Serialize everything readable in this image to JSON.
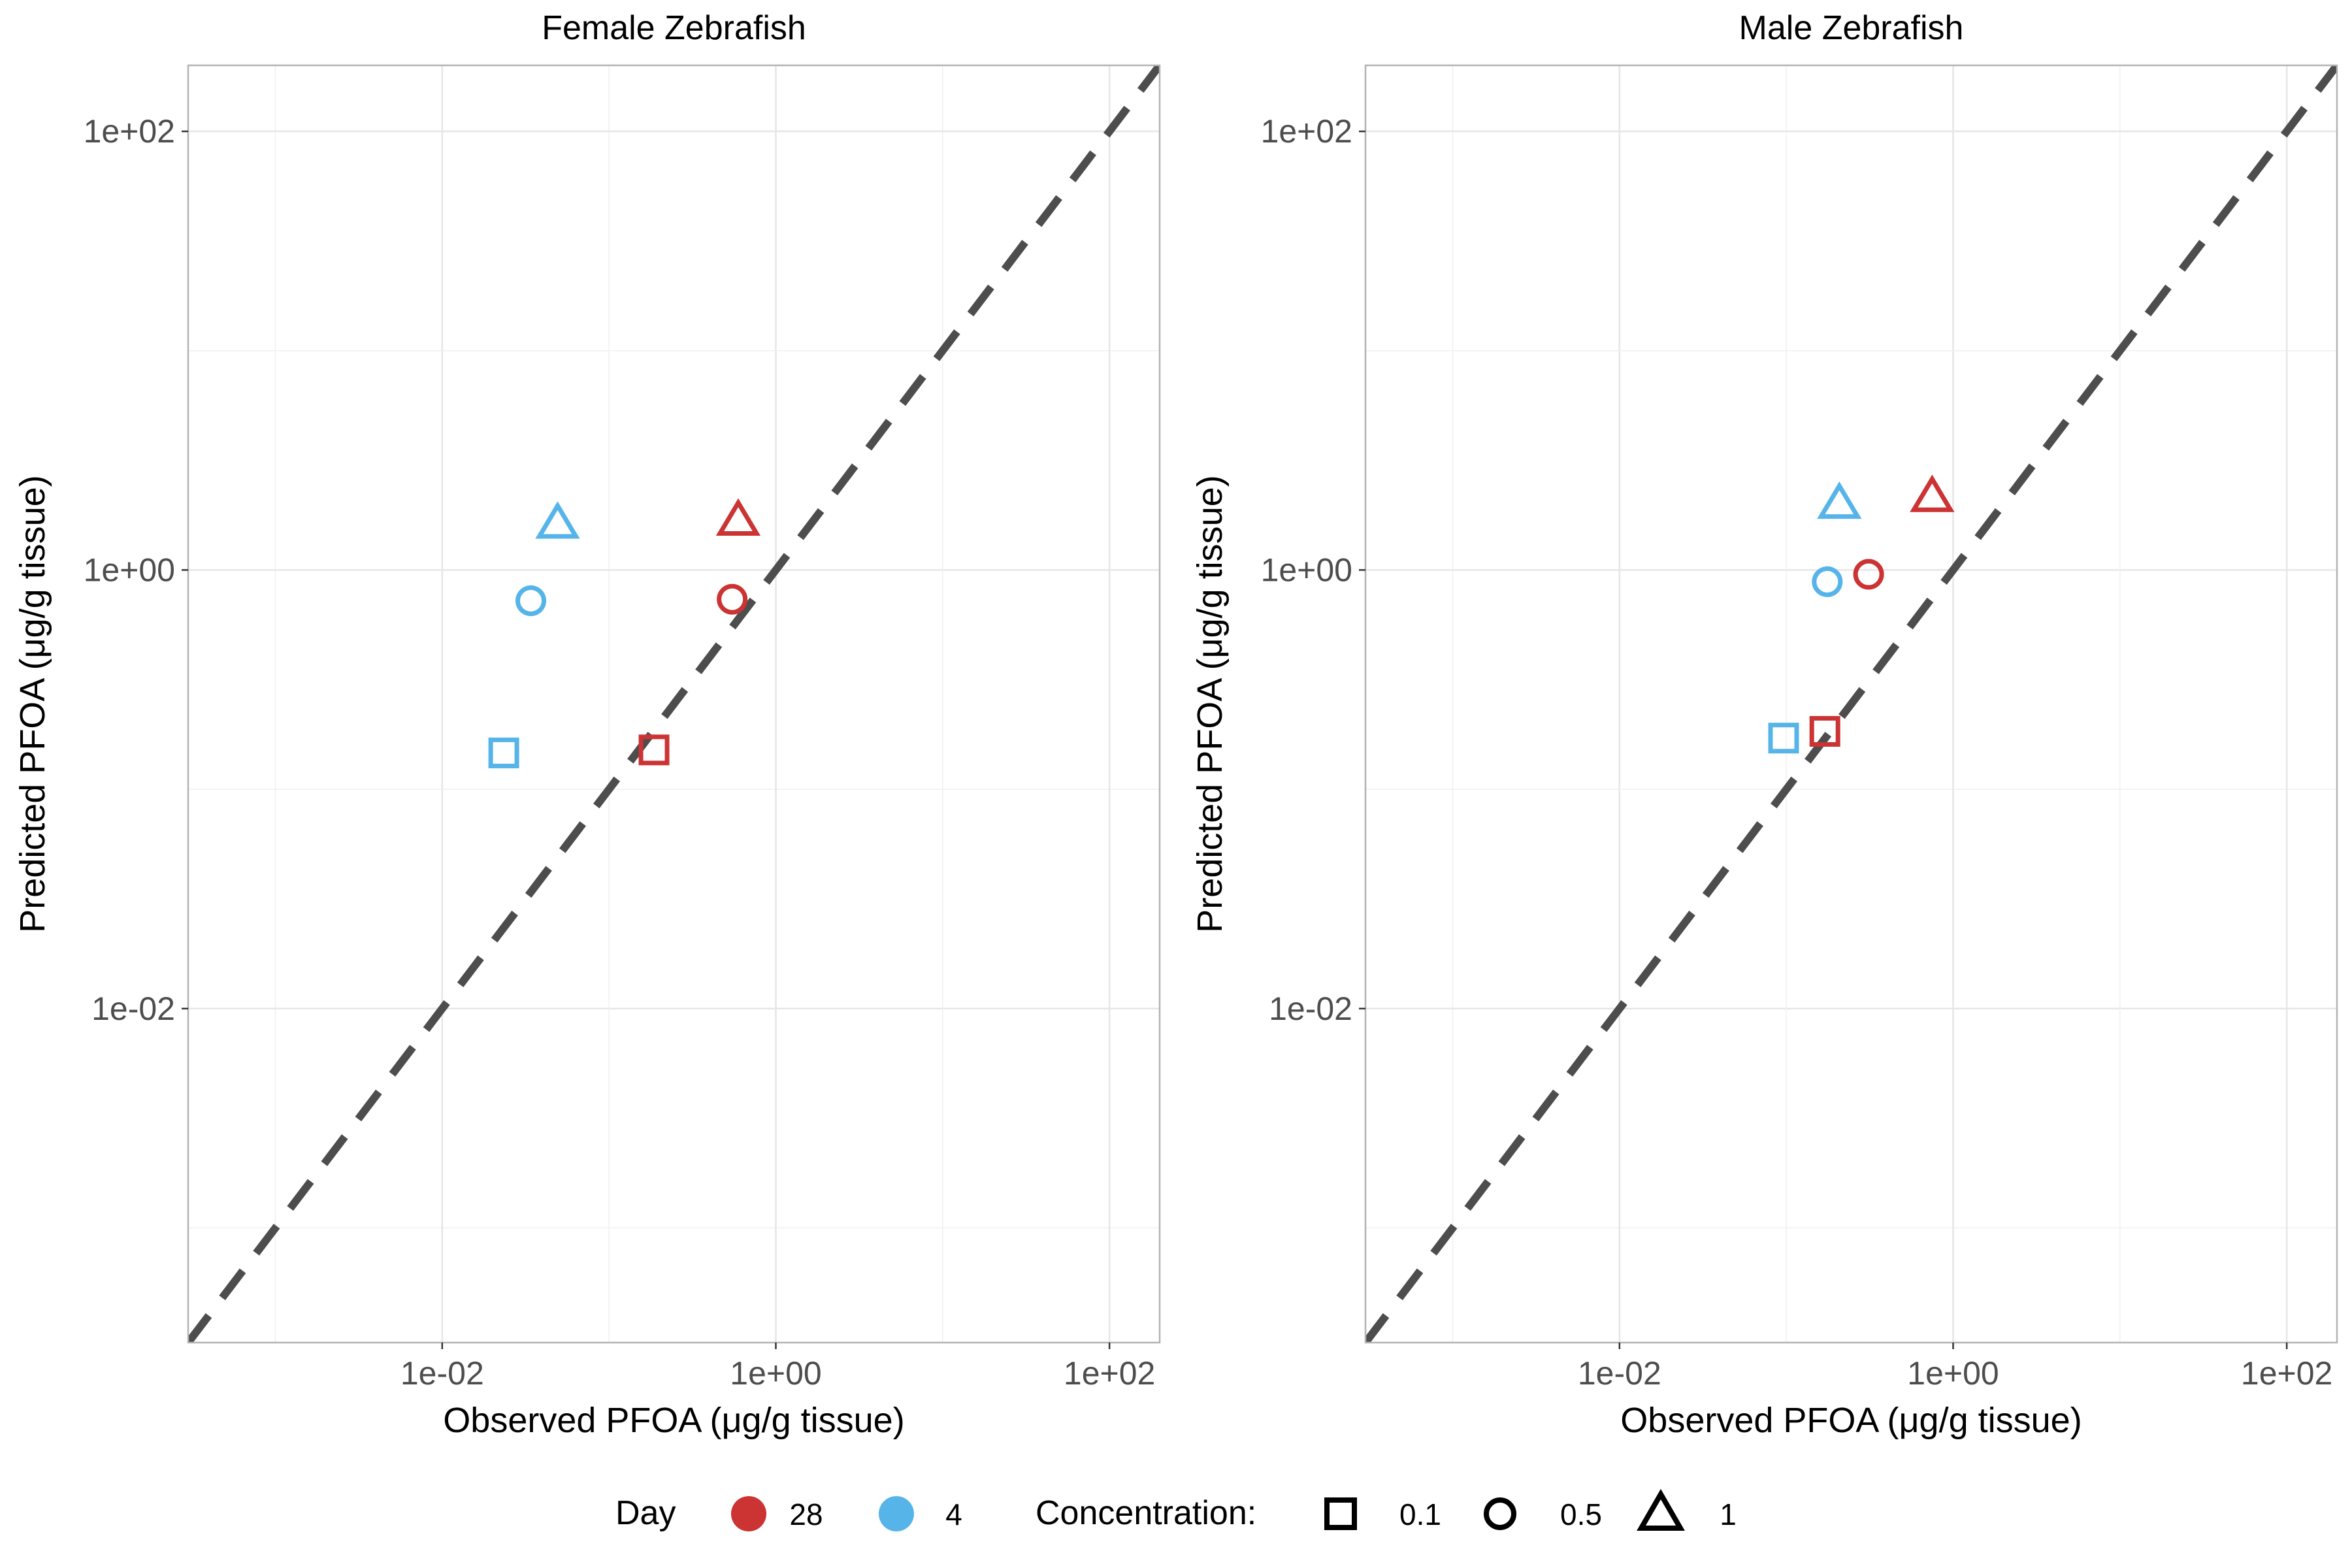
{
  "chart_data": [
    {
      "type": "scatter",
      "title": "Female Zebrafish",
      "xlabel": "Observed PFOA (μg/g tissue)",
      "ylabel": "Predicted PFOA (μg/g tissue)",
      "x_scale": "log10",
      "y_scale": "log10",
      "xlim": [
        0.0003,
        200
      ],
      "ylim": [
        0.0003,
        200
      ],
      "x_ticks": [
        {
          "value": 0.01,
          "label": "1e-02"
        },
        {
          "value": 1,
          "label": "1e+00"
        },
        {
          "value": 100,
          "label": "1e+02"
        }
      ],
      "y_ticks": [
        {
          "value": 0.01,
          "label": "1e-02"
        },
        {
          "value": 1,
          "label": "1e+00"
        },
        {
          "value": 100,
          "label": "1e+02"
        }
      ],
      "grid": true,
      "reference_line": "y = x",
      "points": [
        {
          "x": 0.0234,
          "y": 0.1465,
          "day": "4",
          "concentration": "0.1"
        },
        {
          "x": 0.034,
          "y": 0.724,
          "day": "4",
          "concentration": "0.5"
        },
        {
          "x": 0.0492,
          "y": 1.6315,
          "day": "4",
          "concentration": "1"
        },
        {
          "x": 0.1861,
          "y": 0.1512,
          "day": "28",
          "concentration": "0.1"
        },
        {
          "x": 0.5475,
          "y": 0.7355,
          "day": "28",
          "concentration": "0.5"
        },
        {
          "x": 0.5952,
          "y": 1.6834,
          "day": "28",
          "concentration": "1"
        }
      ]
    },
    {
      "type": "scatter",
      "title": "Male Zebrafish",
      "xlabel": "Observed PFOA (μg/g tissue)",
      "ylabel": "Predicted PFOA (μg/g tissue)",
      "x_scale": "log10",
      "y_scale": "log10",
      "xlim": [
        0.0003,
        200
      ],
      "ylim": [
        0.0003,
        200
      ],
      "x_ticks": [
        {
          "value": 0.01,
          "label": "1e-02"
        },
        {
          "value": 1,
          "label": "1e+00"
        },
        {
          "value": 100,
          "label": "1e+02"
        }
      ],
      "y_ticks": [
        {
          "value": 0.01,
          "label": "1e-02"
        },
        {
          "value": 1,
          "label": "1e+00"
        },
        {
          "value": 100,
          "label": "1e+02"
        }
      ],
      "grid": true,
      "reference_line": "y = x",
      "points": [
        {
          "x": 0.0963,
          "y": 0.1712,
          "day": "4",
          "concentration": "0.1"
        },
        {
          "x": 0.176,
          "y": 0.8841,
          "day": "4",
          "concentration": "0.5"
        },
        {
          "x": 0.2079,
          "y": 2.0096,
          "day": "4",
          "concentration": "1"
        },
        {
          "x": 0.1703,
          "y": 0.1837,
          "day": "28",
          "concentration": "0.1"
        },
        {
          "x": 0.3114,
          "y": 0.9557,
          "day": "28",
          "concentration": "0.5"
        },
        {
          "x": 0.7485,
          "y": 2.1587,
          "day": "28",
          "concentration": "1"
        }
      ]
    }
  ],
  "legend": {
    "placement": "bottom",
    "day_title": "Day",
    "day_items": [
      {
        "label": "28",
        "color": "#cc3333"
      },
      {
        "label": "4",
        "color": "#56b4e9"
      }
    ],
    "conc_title": "Concentration:",
    "conc_items": [
      {
        "label": "0.1",
        "shape": "square"
      },
      {
        "label": "0.5",
        "shape": "circle"
      },
      {
        "label": "1",
        "shape": "triangle"
      }
    ]
  },
  "colors": {
    "day_28": "#cc3333",
    "day_4": "#56b4e9",
    "reference_line": "#4d4d4d"
  }
}
